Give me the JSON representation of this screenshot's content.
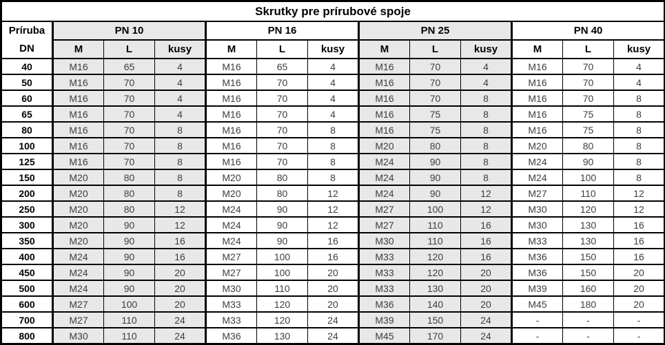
{
  "title": "Skrutky pre prírubové spoje",
  "header": {
    "flange_label": "Príruba",
    "flange_sublabel": "DN",
    "groups": [
      "PN 10",
      "PN 16",
      "PN 25",
      "PN 40"
    ],
    "subheaders": [
      "M",
      "L",
      "kusy"
    ]
  },
  "rows": [
    {
      "dn": "40",
      "pn10": [
        "M16",
        "65",
        "4"
      ],
      "pn16": [
        "M16",
        "65",
        "4"
      ],
      "pn25": [
        "M16",
        "70",
        "4"
      ],
      "pn40": [
        "M16",
        "70",
        "4"
      ]
    },
    {
      "dn": "50",
      "pn10": [
        "M16",
        "70",
        "4"
      ],
      "pn16": [
        "M16",
        "70",
        "4"
      ],
      "pn25": [
        "M16",
        "70",
        "4"
      ],
      "pn40": [
        "M16",
        "70",
        "4"
      ]
    },
    {
      "dn": "60",
      "pn10": [
        "M16",
        "70",
        "4"
      ],
      "pn16": [
        "M16",
        "70",
        "4"
      ],
      "pn25": [
        "M16",
        "70",
        "8"
      ],
      "pn40": [
        "M16",
        "70",
        "8"
      ]
    },
    {
      "dn": "65",
      "pn10": [
        "M16",
        "70",
        "4"
      ],
      "pn16": [
        "M16",
        "70",
        "4"
      ],
      "pn25": [
        "M16",
        "75",
        "8"
      ],
      "pn40": [
        "M16",
        "75",
        "8"
      ]
    },
    {
      "dn": "80",
      "pn10": [
        "M16",
        "70",
        "8"
      ],
      "pn16": [
        "M16",
        "70",
        "8"
      ],
      "pn25": [
        "M16",
        "75",
        "8"
      ],
      "pn40": [
        "M16",
        "75",
        "8"
      ]
    },
    {
      "dn": "100",
      "pn10": [
        "M16",
        "70",
        "8"
      ],
      "pn16": [
        "M16",
        "70",
        "8"
      ],
      "pn25": [
        "M20",
        "80",
        "8"
      ],
      "pn40": [
        "M20",
        "80",
        "8"
      ]
    },
    {
      "dn": "125",
      "pn10": [
        "M16",
        "70",
        "8"
      ],
      "pn16": [
        "M16",
        "70",
        "8"
      ],
      "pn25": [
        "M24",
        "90",
        "8"
      ],
      "pn40": [
        "M24",
        "90",
        "8"
      ]
    },
    {
      "dn": "150",
      "pn10": [
        "M20",
        "80",
        "8"
      ],
      "pn16": [
        "M20",
        "80",
        "8"
      ],
      "pn25": [
        "M24",
        "90",
        "8"
      ],
      "pn40": [
        "M24",
        "100",
        "8"
      ]
    },
    {
      "dn": "200",
      "pn10": [
        "M20",
        "80",
        "8"
      ],
      "pn16": [
        "M20",
        "80",
        "12"
      ],
      "pn25": [
        "M24",
        "90",
        "12"
      ],
      "pn40": [
        "M27",
        "110",
        "12"
      ]
    },
    {
      "dn": "250",
      "pn10": [
        "M20",
        "80",
        "12"
      ],
      "pn16": [
        "M24",
        "90",
        "12"
      ],
      "pn25": [
        "M27",
        "100",
        "12"
      ],
      "pn40": [
        "M30",
        "120",
        "12"
      ]
    },
    {
      "dn": "300",
      "pn10": [
        "M20",
        "90",
        "12"
      ],
      "pn16": [
        "M24",
        "90",
        "12"
      ],
      "pn25": [
        "M27",
        "110",
        "16"
      ],
      "pn40": [
        "M30",
        "130",
        "16"
      ]
    },
    {
      "dn": "350",
      "pn10": [
        "M20",
        "90",
        "16"
      ],
      "pn16": [
        "M24",
        "90",
        "16"
      ],
      "pn25": [
        "M30",
        "110",
        "16"
      ],
      "pn40": [
        "M33",
        "130",
        "16"
      ]
    },
    {
      "dn": "400",
      "pn10": [
        "M24",
        "90",
        "16"
      ],
      "pn16": [
        "M27",
        "100",
        "16"
      ],
      "pn25": [
        "M33",
        "120",
        "16"
      ],
      "pn40": [
        "M36",
        "150",
        "16"
      ]
    },
    {
      "dn": "450",
      "pn10": [
        "M24",
        "90",
        "20"
      ],
      "pn16": [
        "M27",
        "100",
        "20"
      ],
      "pn25": [
        "M33",
        "120",
        "20"
      ],
      "pn40": [
        "M36",
        "150",
        "20"
      ]
    },
    {
      "dn": "500",
      "pn10": [
        "M24",
        "90",
        "20"
      ],
      "pn16": [
        "M30",
        "110",
        "20"
      ],
      "pn25": [
        "M33",
        "130",
        "20"
      ],
      "pn40": [
        "M39",
        "160",
        "20"
      ]
    },
    {
      "dn": "600",
      "pn10": [
        "M27",
        "100",
        "20"
      ],
      "pn16": [
        "M33",
        "120",
        "20"
      ],
      "pn25": [
        "M36",
        "140",
        "20"
      ],
      "pn40": [
        "M45",
        "180",
        "20"
      ]
    },
    {
      "dn": "700",
      "pn10": [
        "M27",
        "110",
        "24"
      ],
      "pn16": [
        "M33",
        "120",
        "24"
      ],
      "pn25": [
        "M39",
        "150",
        "24"
      ],
      "pn40": [
        "-",
        "-",
        "-"
      ]
    },
    {
      "dn": "800",
      "pn10": [
        "M30",
        "110",
        "24"
      ],
      "pn16": [
        "M36",
        "130",
        "24"
      ],
      "pn25": [
        "M45",
        "170",
        "24"
      ],
      "pn40": [
        "-",
        "-",
        "-"
      ]
    }
  ],
  "colors": {
    "shaded_column_bg": "#e8e8e8",
    "border": "#000000",
    "data_text": "#3d3d3d",
    "header_text": "#000000",
    "background": "#ffffff"
  }
}
